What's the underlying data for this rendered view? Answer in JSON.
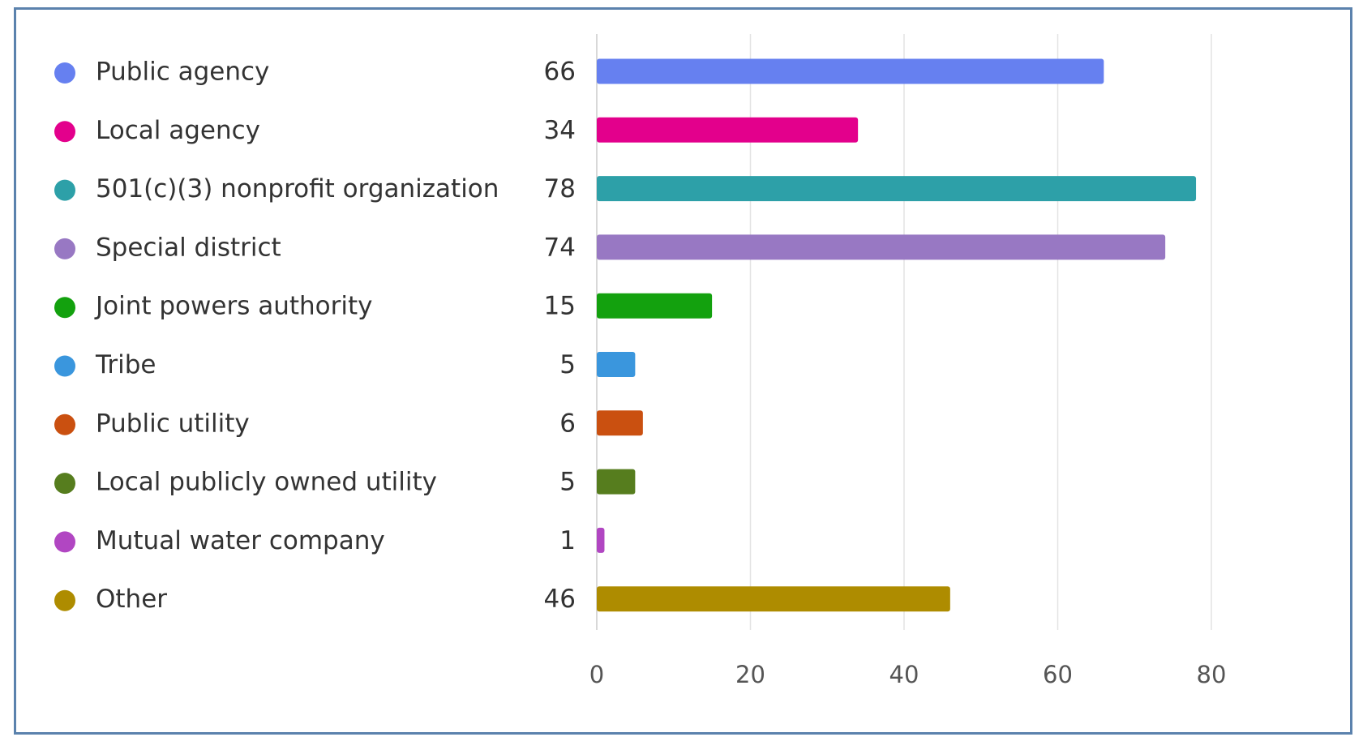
{
  "chart_data": {
    "type": "bar",
    "orientation": "horizontal",
    "categories": [
      "Public agency",
      "Local agency",
      "501(c)(3) nonprofit organization",
      "Special district",
      "Joint powers authority",
      "Tribe",
      "Public utility",
      "Local publicly owned utility",
      "Mutual water company",
      "Other"
    ],
    "values": [
      66,
      34,
      78,
      74,
      15,
      5,
      6,
      5,
      1,
      46
    ],
    "colors": [
      "#6680f0",
      "#e3008c",
      "#2da0a8",
      "#9878c3",
      "#13a10e",
      "#3a96dd",
      "#ca5010",
      "#567d1e",
      "#b146c2",
      "#ae8c00"
    ],
    "xlim": [
      0,
      80
    ],
    "xticks": [
      0,
      20,
      40,
      60,
      80
    ],
    "grid": true,
    "legend": "left",
    "title": "",
    "xlabel": "",
    "ylabel": ""
  }
}
